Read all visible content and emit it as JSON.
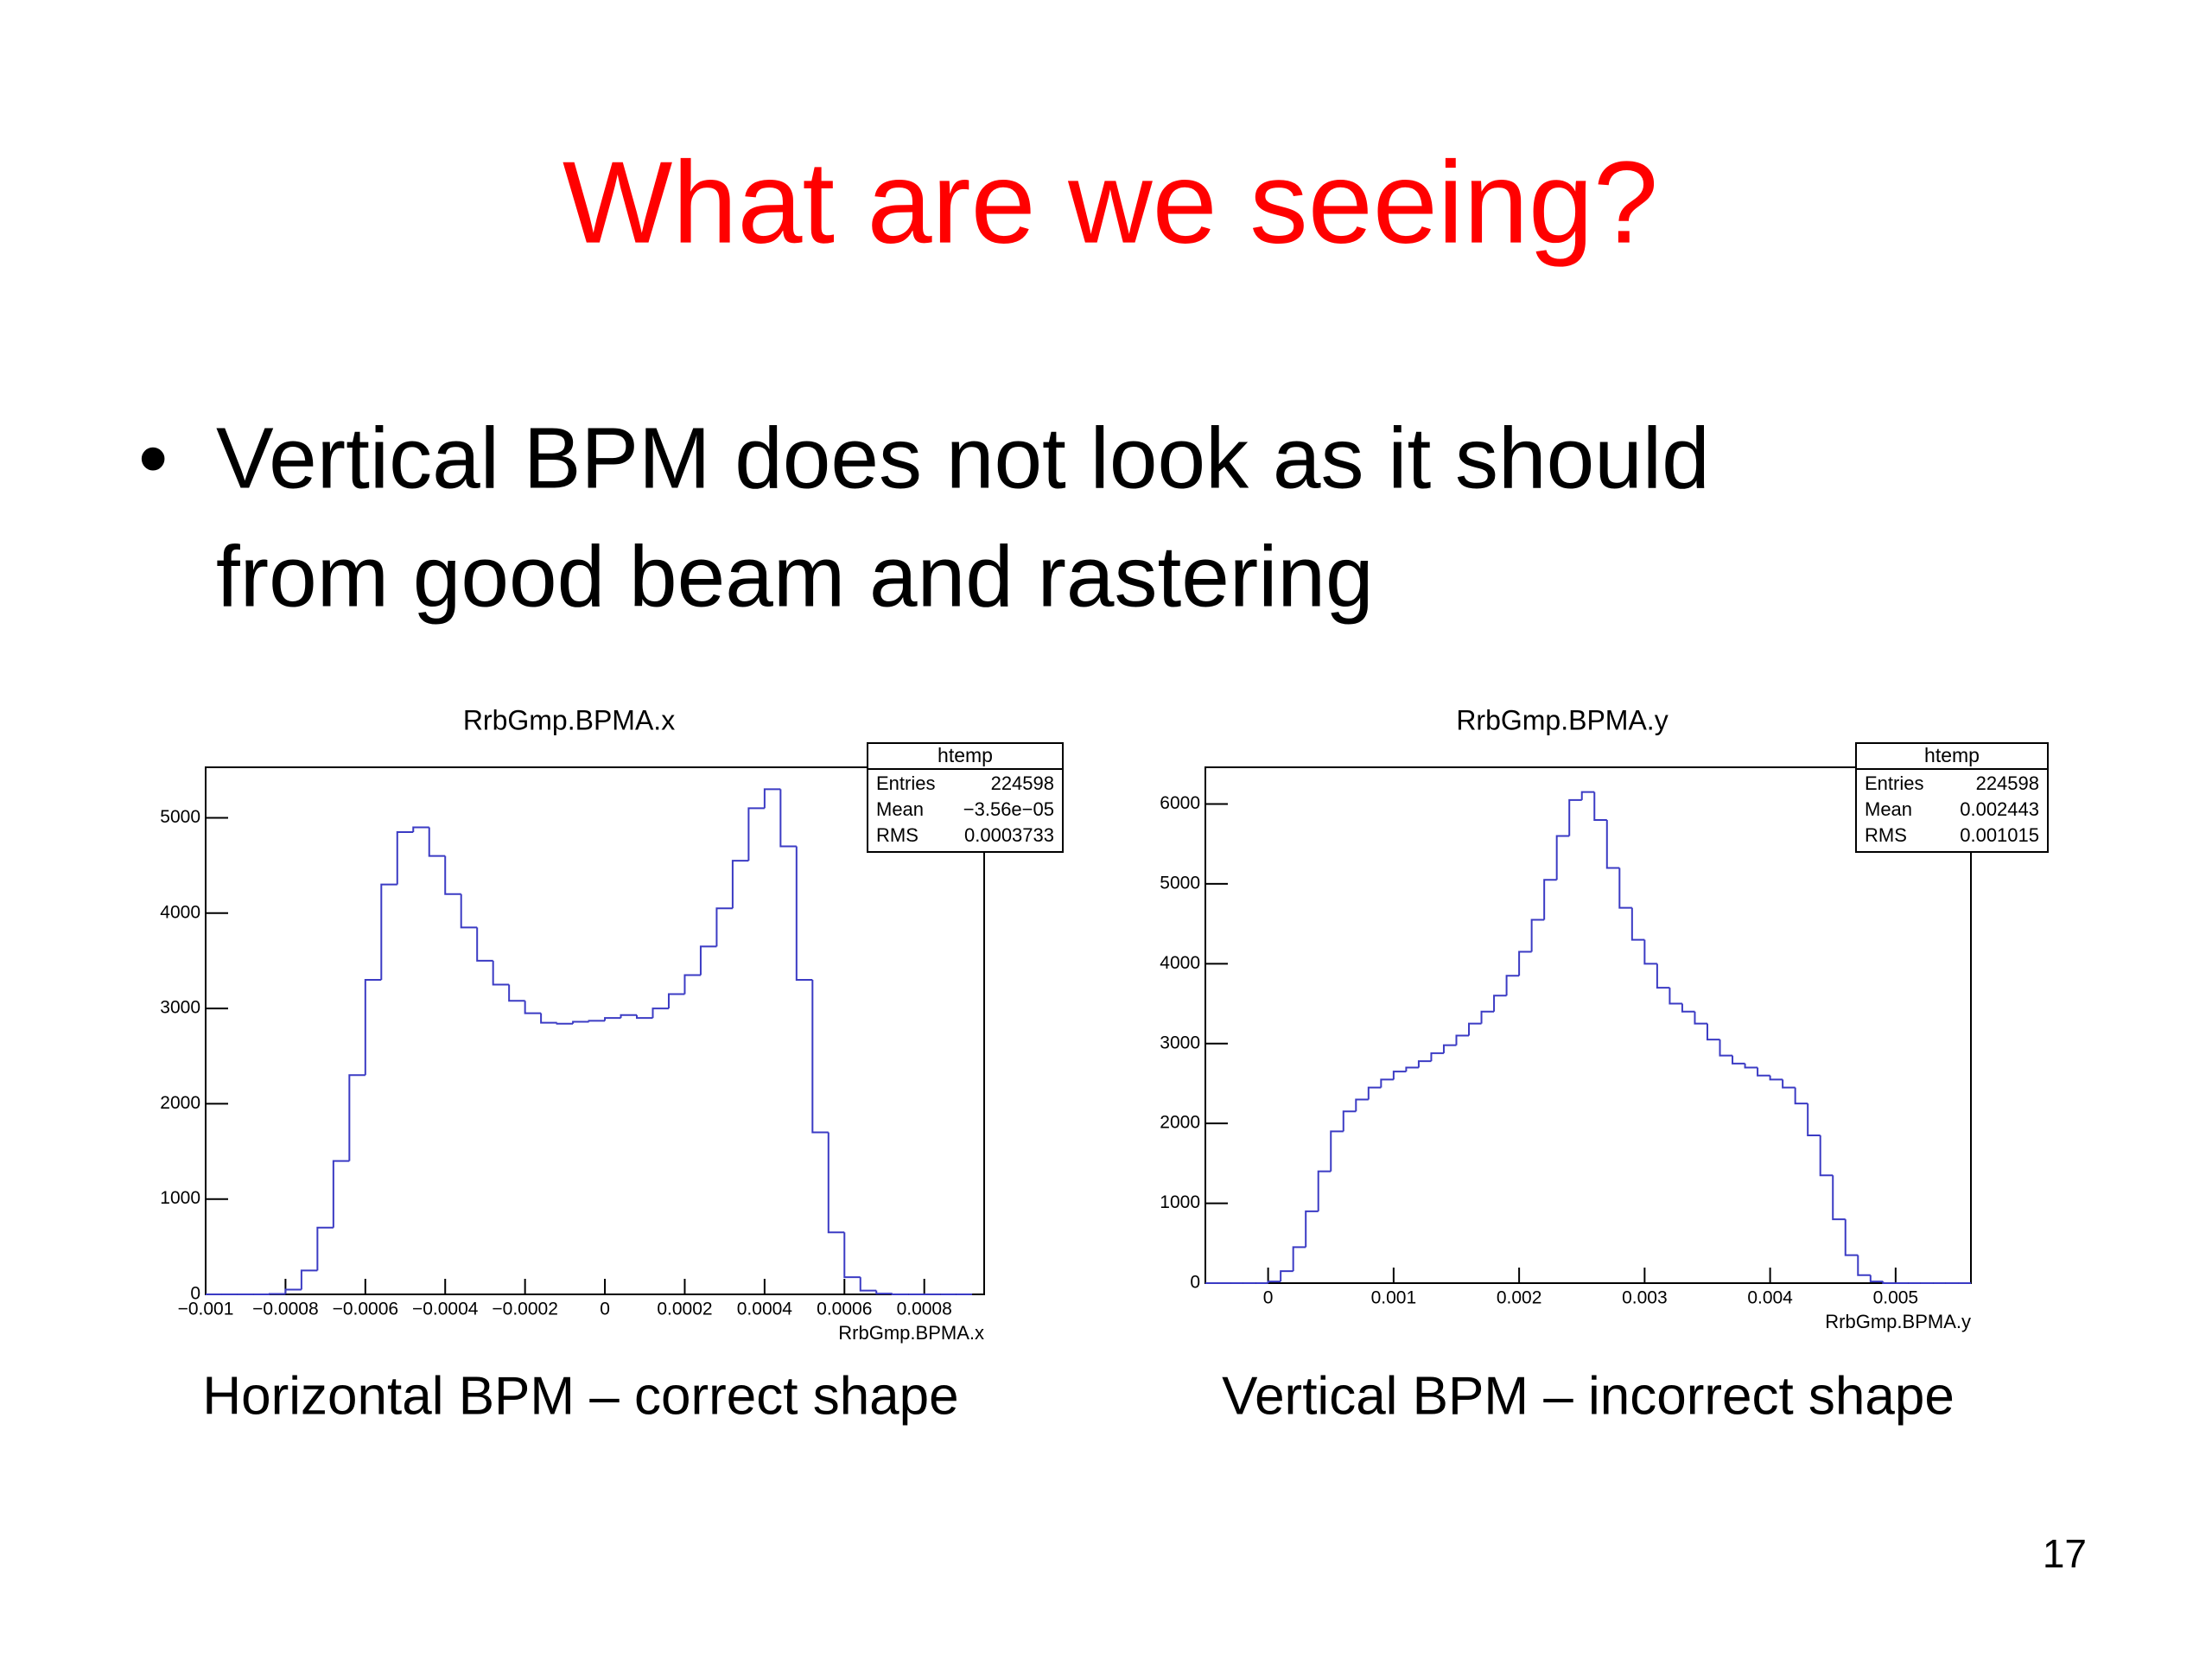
{
  "slide": {
    "title": "What are we seeing?",
    "bullet": "•",
    "bullet_lines": [
      "Vertical BPM does not look as it should",
      "from good beam and rastering"
    ],
    "captions": [
      "Horizontal BPM – correct shape",
      "Vertical BPM – incorrect shape"
    ],
    "page_number": "17"
  },
  "chart_data": [
    {
      "type": "histogram",
      "title": "RrbGmp.BPMA.x",
      "x_label": "RrbGmp.BPMA.x",
      "color": "#3b3bc4",
      "bins": [
        -0.001,
        -0.00096,
        -0.00092,
        -0.00088,
        -0.00084,
        -0.0008,
        -0.00076,
        -0.00072,
        -0.00068,
        -0.00064,
        -0.0006,
        -0.00056,
        -0.00052,
        -0.00048,
        -0.00044,
        -0.0004,
        -0.00036,
        -0.00032,
        -0.00028,
        -0.00024,
        -0.0002,
        -0.00016,
        -0.00012,
        -8e-05,
        -4e-05,
        0,
        4e-05,
        8e-05,
        0.00012,
        0.00016,
        0.0002,
        0.00024,
        0.00028,
        0.00032,
        0.00036,
        0.0004,
        0.00044,
        0.00048,
        0.00052,
        0.00056,
        0.0006,
        0.00064,
        0.00068,
        0.00072,
        0.00076,
        0.0008,
        0.00084,
        0.00088,
        0.00092
      ],
      "counts": [
        0,
        0,
        0,
        0,
        5,
        50,
        250,
        700,
        1400,
        2300,
        3300,
        4300,
        4850,
        4900,
        4600,
        4200,
        3850,
        3500,
        3250,
        3080,
        2950,
        2850,
        2840,
        2860,
        2870,
        2900,
        2930,
        2900,
        3000,
        3150,
        3350,
        3650,
        4050,
        4550,
        5100,
        5300,
        4700,
        3300,
        1700,
        650,
        180,
        40,
        8,
        0,
        0,
        0,
        0,
        0
      ],
      "xlim": [
        -0.001,
        0.00095
      ],
      "ylim": [
        0,
        5530
      ],
      "xticks": [
        {
          "value": -0.001,
          "label": "−0.001"
        },
        {
          "value": -0.0008,
          "label": "−0.0008"
        },
        {
          "value": -0.0006,
          "label": "−0.0006"
        },
        {
          "value": -0.0004,
          "label": "−0.0004"
        },
        {
          "value": -0.0002,
          "label": "−0.0002"
        },
        0,
        0.0002,
        0.0004,
        0.0006,
        0.0008
      ],
      "yticks": [
        0,
        1000,
        2000,
        3000,
        4000,
        5000
      ],
      "stats": {
        "title": "htemp",
        "rows": [
          {
            "name": "Entries",
            "value": "224598"
          },
          {
            "name": "Mean",
            "value": "−3.56e−05"
          },
          {
            "name": "RMS",
            "value": "0.0003733"
          }
        ]
      }
    },
    {
      "type": "histogram",
      "title": "RrbGmp.BPMA.y",
      "x_label": "RrbGmp.BPMA.y",
      "color": "#3b3bc4",
      "bins": [
        -0.0005,
        -0.0004,
        -0.0003,
        -0.0002,
        -0.0001,
        0,
        0.0001,
        0.0002,
        0.0003,
        0.0004,
        0.0005,
        0.0006,
        0.0007,
        0.0008,
        0.0009,
        0.001,
        0.0011,
        0.0012,
        0.0013,
        0.0014,
        0.0015,
        0.0016,
        0.0017,
        0.0018,
        0.0019,
        0.002,
        0.0021,
        0.0022,
        0.0023,
        0.0024,
        0.0025,
        0.0026,
        0.0027,
        0.0028,
        0.0029,
        0.003,
        0.0031,
        0.0032,
        0.0033,
        0.0034,
        0.0035,
        0.0036,
        0.0037,
        0.0038,
        0.0039,
        0.004,
        0.0041,
        0.0042,
        0.0043,
        0.0044,
        0.0045,
        0.0046,
        0.0047,
        0.0048,
        0.0049,
        0.005,
        0.0051,
        0.0052,
        0.0053,
        0.0054,
        0.0055,
        0.0056
      ],
      "counts": [
        0,
        0,
        0,
        0,
        0,
        20,
        150,
        450,
        900,
        1400,
        1900,
        2150,
        2300,
        2450,
        2550,
        2650,
        2700,
        2780,
        2880,
        2980,
        3100,
        3250,
        3400,
        3600,
        3850,
        4150,
        4550,
        5050,
        5600,
        6050,
        6150,
        5800,
        5200,
        4700,
        4300,
        4000,
        3700,
        3500,
        3400,
        3250,
        3050,
        2850,
        2750,
        2700,
        2600,
        2550,
        2450,
        2250,
        1850,
        1350,
        800,
        350,
        100,
        20,
        0,
        0,
        0,
        0,
        0,
        0,
        0
      ],
      "xlim": [
        -0.0005,
        0.0056
      ],
      "ylim": [
        0,
        6460
      ],
      "xticks": [
        0,
        0.001,
        0.002,
        0.003,
        0.004,
        0.005
      ],
      "yticks": [
        0,
        1000,
        2000,
        3000,
        4000,
        5000,
        6000
      ],
      "stats": {
        "title": "htemp",
        "rows": [
          {
            "name": "Entries",
            "value": "224598"
          },
          {
            "name": "Mean",
            "value": "0.002443"
          },
          {
            "name": "RMS",
            "value": "0.001015"
          }
        ]
      }
    }
  ]
}
